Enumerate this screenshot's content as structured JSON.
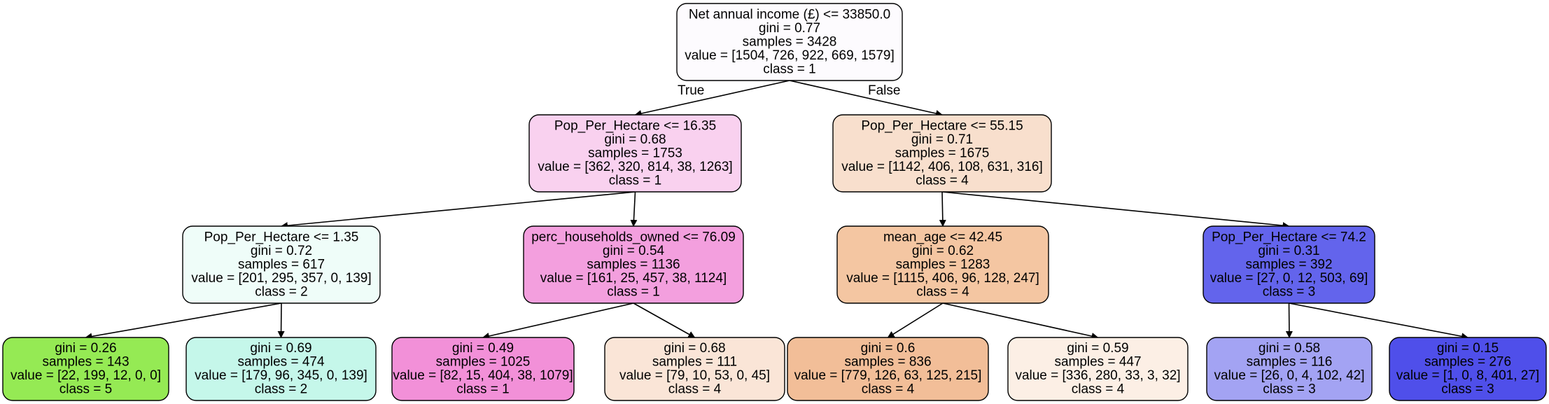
{
  "nodes": [
    {
      "id": "root",
      "fill": "#fdfbfe",
      "lines": [
        "Net annual income (£) <= 33850.0",
        "gini = 0.77",
        "samples = 3428",
        "value = [1504, 726, 922, 669, 1579]",
        "class = 1"
      ]
    },
    {
      "id": "n1",
      "fill": "#f9d1ef",
      "lines": [
        "Pop_Per_Hectare <= 16.35",
        "gini = 0.68",
        "samples = 1753",
        "value = [362, 320, 814, 38, 1263]",
        "class = 1"
      ]
    },
    {
      "id": "n2",
      "fill": "#f8dfcd",
      "lines": [
        "Pop_Per_Hectare <= 55.15",
        "gini = 0.71",
        "samples = 1675",
        "value = [1142, 406, 108, 631, 316]",
        "class = 4"
      ]
    },
    {
      "id": "n3",
      "fill": "#effdf9",
      "lines": [
        "Pop_Per_Hectare <= 1.35",
        "gini = 0.72",
        "samples = 617",
        "value = [201, 295, 357, 0, 139]",
        "class = 2"
      ]
    },
    {
      "id": "n4",
      "fill": "#f39fde",
      "lines": [
        "perc_households_owned <= 76.09",
        "gini = 0.54",
        "samples = 1136",
        "value = [161, 25, 457, 38, 1124]",
        "class = 1"
      ]
    },
    {
      "id": "n5",
      "fill": "#f4c6a2",
      "lines": [
        "mean_age <= 42.45",
        "gini = 0.62",
        "samples = 1283",
        "value = [1115, 406, 96, 128, 247]",
        "class = 4"
      ]
    },
    {
      "id": "n6",
      "fill": "#6364ec",
      "lines": [
        "Pop_Per_Hectare <= 74.2",
        "gini = 0.31",
        "samples = 392",
        "value = [27, 0, 12, 503, 69]",
        "class = 3"
      ]
    },
    {
      "id": "n7",
      "fill": "#95ea54",
      "lines": [
        "gini = 0.26",
        "samples = 143",
        "value = [22, 199, 12, 0, 0]",
        "class = 5"
      ]
    },
    {
      "id": "n8",
      "fill": "#c5f7ea",
      "lines": [
        "gini = 0.69",
        "samples = 474",
        "value = [179, 96, 345, 0, 139]",
        "class = 2"
      ]
    },
    {
      "id": "n9",
      "fill": "#f290d8",
      "lines": [
        "gini = 0.49",
        "samples = 1025",
        "value = [82, 15, 404, 38, 1079]",
        "class = 1"
      ]
    },
    {
      "id": "n10",
      "fill": "#fae5d7",
      "lines": [
        "gini = 0.68",
        "samples = 111",
        "value = [79, 10, 53, 0, 45]",
        "class = 4"
      ]
    },
    {
      "id": "n11",
      "fill": "#f2be98",
      "lines": [
        "gini = 0.6",
        "samples = 836",
        "value = [779, 126, 63, 125, 215]",
        "class = 4"
      ]
    },
    {
      "id": "n12",
      "fill": "#fcefe5",
      "lines": [
        "gini = 0.59",
        "samples = 447",
        "value = [336, 280, 33, 3, 32]",
        "class = 4"
      ]
    },
    {
      "id": "n13",
      "fill": "#a3a3f3",
      "lines": [
        "gini = 0.58",
        "samples = 116",
        "value = [26, 0, 4, 102, 42]",
        "class = 3"
      ]
    },
    {
      "id": "n14",
      "fill": "#4f4fea",
      "lines": [
        "gini = 0.15",
        "samples = 276",
        "value = [1, 0, 8, 401, 27]",
        "class = 3"
      ]
    }
  ],
  "edges": [
    {
      "from": "root",
      "to": "n1",
      "label": "True"
    },
    {
      "from": "root",
      "to": "n2",
      "label": "False"
    },
    {
      "from": "n1",
      "to": "n3"
    },
    {
      "from": "n1",
      "to": "n4"
    },
    {
      "from": "n2",
      "to": "n5"
    },
    {
      "from": "n2",
      "to": "n6"
    },
    {
      "from": "n3",
      "to": "n7"
    },
    {
      "from": "n3",
      "to": "n8"
    },
    {
      "from": "n4",
      "to": "n9"
    },
    {
      "from": "n4",
      "to": "n10"
    },
    {
      "from": "n5",
      "to": "n11"
    },
    {
      "from": "n5",
      "to": "n12"
    },
    {
      "from": "n6",
      "to": "n13"
    },
    {
      "from": "n6",
      "to": "n14"
    }
  ]
}
